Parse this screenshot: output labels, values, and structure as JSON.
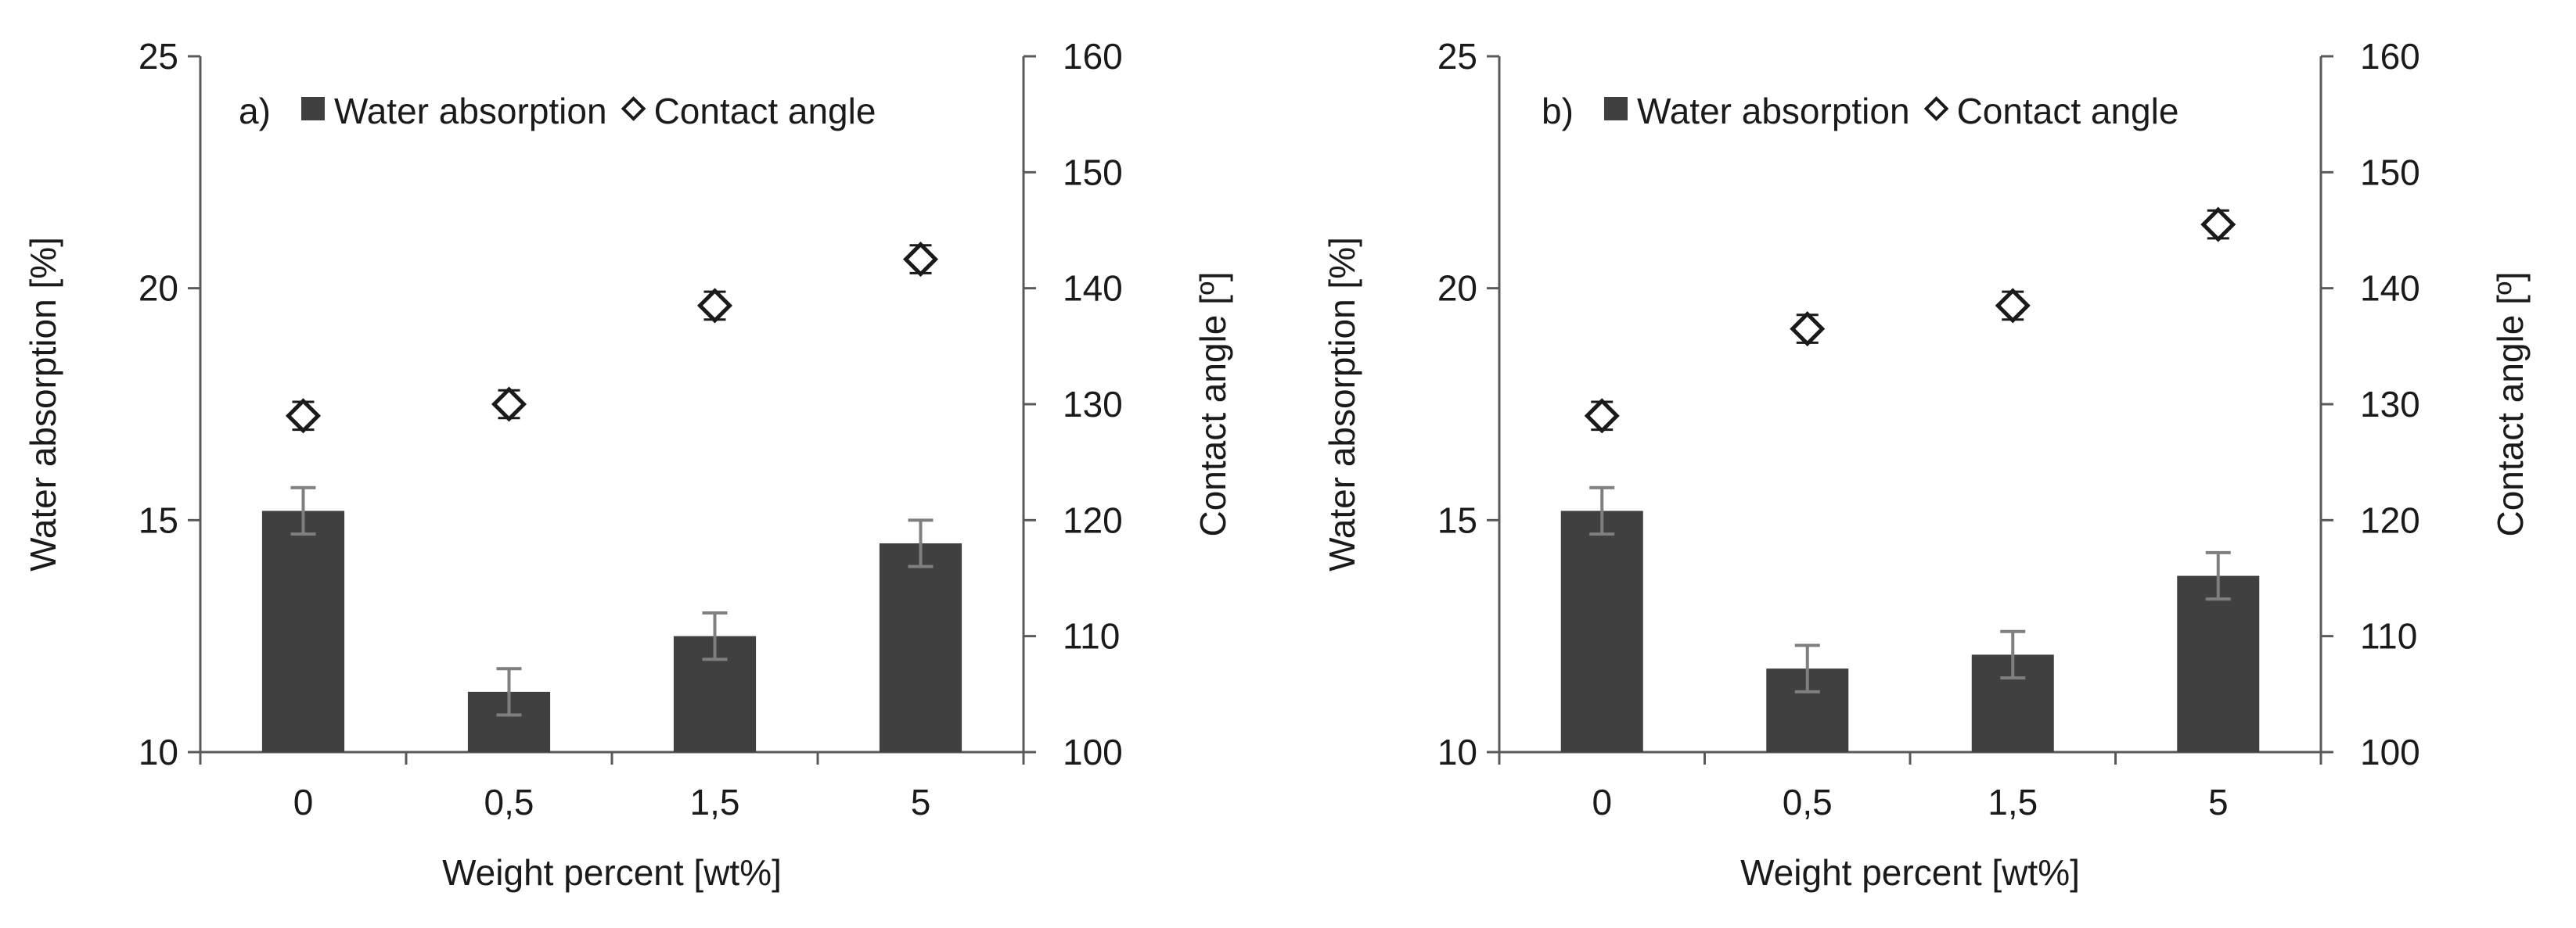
{
  "colors": {
    "bar": "#404040",
    "error_bar": "#7f7f7f",
    "axis": "#595959",
    "marker_fill": "#ffffff",
    "marker_stroke": "#1a1a1a"
  },
  "chart_data": [
    {
      "type": "bar",
      "panel_label": "a)",
      "categories": [
        "0",
        "0,5",
        "1,5",
        "5"
      ],
      "xlabel": "Weight percent [wt%]",
      "ylabel": "Water absorption [%]",
      "y2label": "Contact angle [º]",
      "ylim": [
        10,
        25
      ],
      "yticks": [
        "10",
        "15",
        "20",
        "25"
      ],
      "y2lim": [
        100,
        160
      ],
      "y2ticks": [
        "100",
        "110",
        "120",
        "130",
        "140",
        "150",
        "160"
      ],
      "legend": [
        "Water absorption",
        "Contact angle"
      ],
      "series": [
        {
          "name": "Water absorption",
          "axis": "left",
          "kind": "bar",
          "values": [
            15.2,
            11.3,
            12.5,
            14.5
          ],
          "errors": [
            0.5,
            0.5,
            0.5,
            0.5
          ]
        },
        {
          "name": "Contact angle",
          "axis": "right",
          "kind": "scatter",
          "values": [
            129,
            130,
            138.5,
            142.5
          ],
          "errors": [
            1.2,
            1.2,
            1.2,
            1.2
          ]
        }
      ]
    },
    {
      "type": "bar",
      "panel_label": "b)",
      "categories": [
        "0",
        "0,5",
        "1,5",
        "5"
      ],
      "xlabel": "Weight percent [wt%]",
      "ylabel": "Water absorption [%]",
      "y2label": "Contact angle [º]",
      "ylim": [
        10,
        25
      ],
      "yticks": [
        "10",
        "15",
        "20",
        "25"
      ],
      "y2lim": [
        100,
        160
      ],
      "y2ticks": [
        "100",
        "110",
        "120",
        "130",
        "140",
        "150",
        "160"
      ],
      "legend": [
        "Water absorption",
        "Contact angle"
      ],
      "series": [
        {
          "name": "Water absorption",
          "axis": "left",
          "kind": "bar",
          "values": [
            15.2,
            11.8,
            12.1,
            13.8
          ],
          "errors": [
            0.5,
            0.5,
            0.5,
            0.5
          ]
        },
        {
          "name": "Contact angle",
          "axis": "right",
          "kind": "scatter",
          "values": [
            129,
            136.5,
            138.5,
            145.5
          ],
          "errors": [
            1.2,
            1.2,
            1.2,
            1.2
          ]
        }
      ]
    }
  ]
}
